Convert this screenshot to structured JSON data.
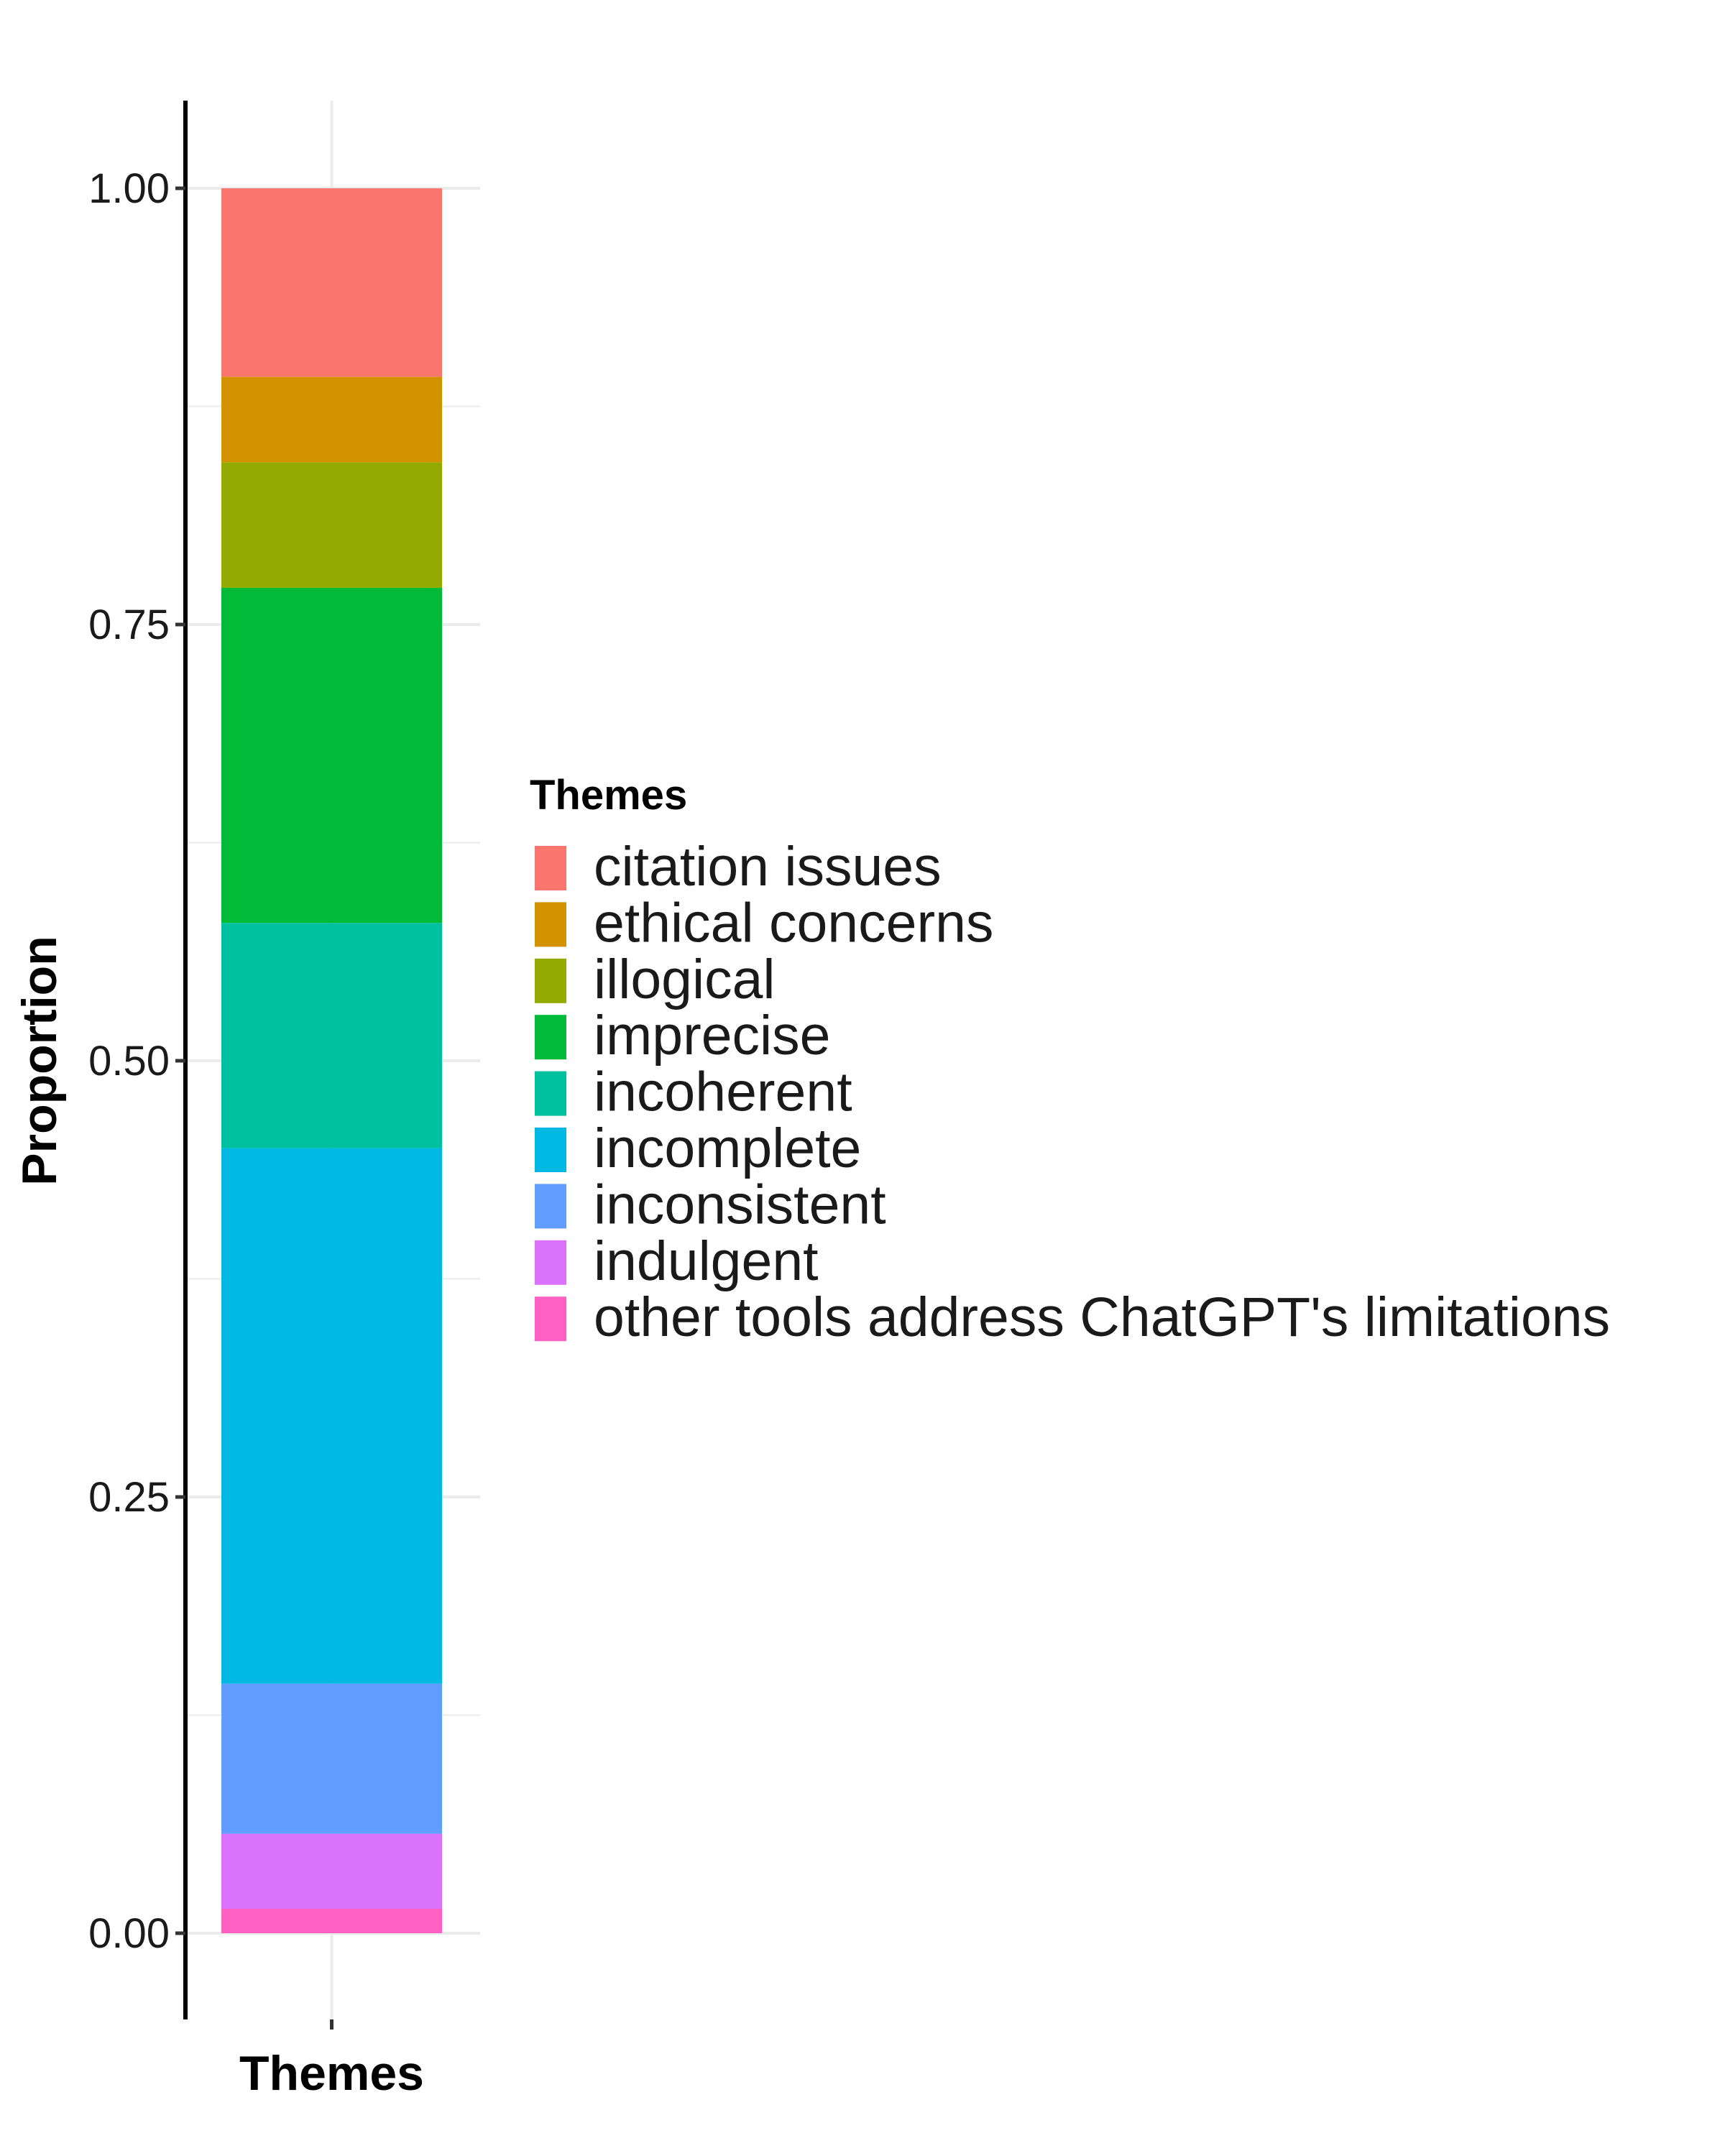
{
  "chart_data": {
    "type": "bar",
    "stacked": true,
    "normalized": true,
    "categories": [
      "Themes"
    ],
    "xlabel": "Themes",
    "ylabel": "Proportion",
    "ylim": [
      0,
      1
    ],
    "yticks": [
      "0.00",
      "0.25",
      "0.50",
      "0.75",
      "1.00"
    ],
    "grid": true,
    "legend": {
      "title": "Themes",
      "position": "right"
    },
    "series": [
      {
        "name": "citation issues",
        "values": [
          0.108
        ],
        "color": "#F8766D"
      },
      {
        "name": "ethical concerns",
        "values": [
          0.049
        ],
        "color": "#D39200"
      },
      {
        "name": "illogical",
        "values": [
          0.072
        ],
        "color": "#93AA00"
      },
      {
        "name": "imprecise",
        "values": [
          0.192
        ],
        "color": "#00BA38"
      },
      {
        "name": "incoherent",
        "values": [
          0.129
        ],
        "color": "#00C19F"
      },
      {
        "name": "incomplete",
        "values": [
          0.307
        ],
        "color": "#00B9E3"
      },
      {
        "name": "inconsistent",
        "values": [
          0.086
        ],
        "color": "#619CFF"
      },
      {
        "name": "indulgent",
        "values": [
          0.043
        ],
        "color": "#DB72FB"
      },
      {
        "name": "other tools address ChatGPT's limitations",
        "values": [
          0.014
        ],
        "color": "#FF61C3"
      }
    ]
  }
}
